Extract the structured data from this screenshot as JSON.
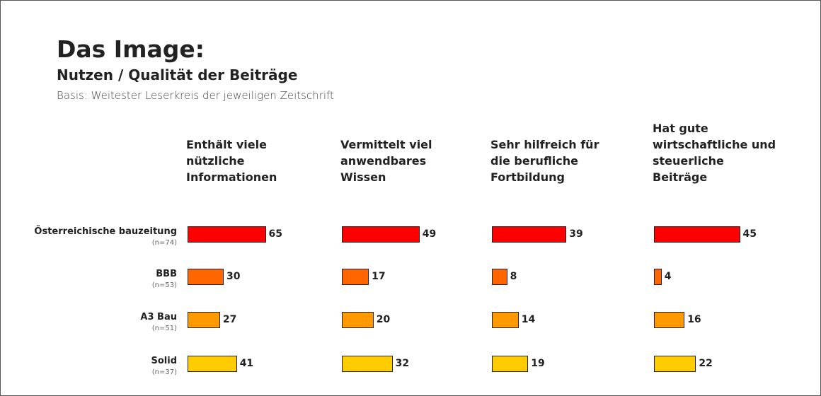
{
  "chart_data": {
    "type": "bar",
    "title": "Das Image:",
    "subtitle": "Nutzen / Qualität der Beiträge",
    "note": "Basis: Weitester Leserkreis der jeweiligen Zeitschrift",
    "categories": [
      "Österreichische bauzeitung",
      "BBB",
      "A3 Bau",
      "Solid"
    ],
    "category_notes": [
      "(n=74)",
      "(n=53)",
      "(n=51)",
      "(n=37)"
    ],
    "colors": [
      "#ff0000",
      "#ff6600",
      "#ff9900",
      "#ffcc00"
    ],
    "series": [
      {
        "name": "Enthält viele nützliche Informationen",
        "values": [
          65,
          30,
          27,
          41
        ]
      },
      {
        "name": "Vermittelt viel anwendbares Wissen",
        "values": [
          49,
          17,
          20,
          32
        ]
      },
      {
        "name": "Sehr hilfreich für die berufliche Fortbildung",
        "values": [
          39,
          8,
          14,
          19
        ]
      },
      {
        "name": "Hat gute wirtschaftliche und steuerliche Beiträge",
        "values": [
          45,
          4,
          16,
          22
        ]
      }
    ]
  }
}
